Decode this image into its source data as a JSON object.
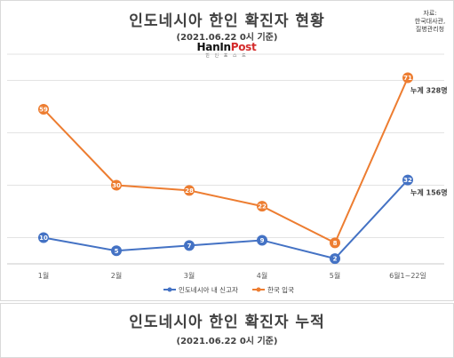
{
  "header": {
    "title": "인도네시아 한인 확진자 현황",
    "subtitle": "(2021.06.22 0시 기준)",
    "logo_text_a": "HanIn",
    "logo_text_b": "Post",
    "logo_tagline": "한 인 포 스 트",
    "source_line1": "자료:",
    "source_line2": "한국대사관,",
    "source_line3": "질병관리청"
  },
  "chart_data": {
    "type": "line",
    "categories": [
      "1월",
      "2월",
      "3월",
      "4월",
      "5월",
      "6월1~22일"
    ],
    "ylim": [
      0,
      80
    ],
    "grid": true,
    "legend_position": "bottom",
    "series": [
      {
        "name": "인도네시아 내 신고자",
        "color": "#4472c4",
        "values": [
          10,
          5,
          7,
          9,
          2,
          32
        ]
      },
      {
        "name": "한국 입국",
        "color": "#ed7d31",
        "values": [
          59,
          30,
          28,
          22,
          8,
          71
        ]
      }
    ],
    "annotations": [
      {
        "text": "누계 328명",
        "series": 1
      },
      {
        "text": "누계 156명",
        "series": 0
      }
    ]
  },
  "footer": {
    "title": "인도네시아 한인 확진자 누적",
    "subtitle": "(2021.06.22 0시 기준)"
  }
}
